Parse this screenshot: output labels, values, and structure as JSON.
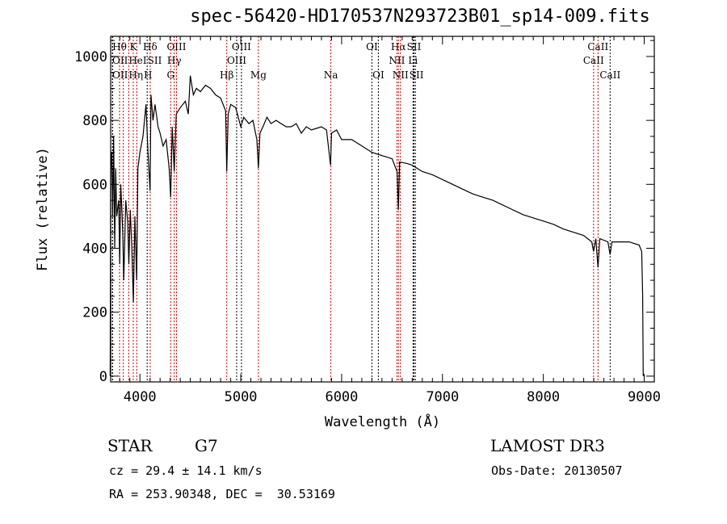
{
  "chart_data": {
    "type": "line",
    "title": "spec-56420-HD170537N293723B01_sp14-009.fits",
    "xlabel": "Wavelength (Å)",
    "ylabel": "Flux (relative)",
    "xlim": [
      3710,
      9100
    ],
    "ylim": [
      -18,
      1063
    ],
    "xticks": [
      4000,
      5000,
      6000,
      7000,
      8000,
      9000
    ],
    "xtick_labels": [
      "4000",
      "5000",
      "6000",
      "7000",
      "8000",
      "9000"
    ],
    "yticks": [
      0,
      200,
      400,
      600,
      800,
      1000
    ],
    "ytick_labels": [
      "0",
      "200",
      "400",
      "600",
      "800",
      "1000"
    ],
    "grid": false,
    "series": [
      {
        "name": "spectrum",
        "color": "#000000",
        "x": [
          3705,
          3710,
          3720,
          3730,
          3740,
          3750,
          3760,
          3770,
          3790,
          3800,
          3810,
          3830,
          3840,
          3860,
          3880,
          3890,
          3905,
          3920,
          3935,
          3950,
          3968,
          3980,
          4000,
          4030,
          4060,
          4080,
          4101,
          4110,
          4130,
          4150,
          4180,
          4200,
          4230,
          4260,
          4290,
          4305,
          4320,
          4340,
          4360,
          4400,
          4450,
          4480,
          4500,
          4530,
          4560,
          4600,
          4650,
          4700,
          4750,
          4800,
          4850,
          4861,
          4875,
          4900,
          4950,
          5000,
          5030,
          5080,
          5120,
          5160,
          5175,
          5190,
          5220,
          5260,
          5300,
          5350,
          5400,
          5450,
          5500,
          5550,
          5600,
          5650,
          5700,
          5750,
          5800,
          5850,
          5890,
          5900,
          5950,
          6000,
          6100,
          6200,
          6300,
          6400,
          6500,
          6550,
          6563,
          6575,
          6650,
          6700,
          6800,
          6900,
          7000,
          7100,
          7200,
          7300,
          7400,
          7500,
          7600,
          7700,
          7800,
          7900,
          8000,
          8100,
          8200,
          8300,
          8400,
          8480,
          8498,
          8520,
          8542,
          8560,
          8640,
          8662,
          8680,
          8750,
          8850,
          8950,
          8975,
          8985,
          8990
        ],
        "y": [
          0,
          650,
          700,
          500,
          750,
          400,
          650,
          500,
          550,
          350,
          600,
          450,
          300,
          550,
          480,
          350,
          520,
          400,
          230,
          500,
          300,
          650,
          700,
          750,
          850,
          700,
          580,
          880,
          800,
          850,
          780,
          760,
          720,
          740,
          650,
          560,
          780,
          640,
          820,
          840,
          860,
          820,
          940,
          880,
          900,
          890,
          910,
          900,
          880,
          870,
          830,
          640,
          820,
          850,
          840,
          780,
          810,
          790,
          800,
          740,
          650,
          760,
          780,
          810,
          790,
          800,
          790,
          780,
          780,
          790,
          760,
          780,
          770,
          775,
          780,
          770,
          660,
          760,
          770,
          740,
          740,
          720,
          700,
          690,
          680,
          640,
          520,
          670,
          665,
          660,
          640,
          630,
          615,
          600,
          585,
          570,
          560,
          550,
          535,
          520,
          505,
          495,
          485,
          475,
          460,
          450,
          440,
          420,
          390,
          430,
          340,
          430,
          420,
          380,
          420,
          420,
          420,
          410,
          390,
          250,
          0
        ]
      }
    ],
    "line_markers": [
      {
        "label": "Hθ",
        "wavelength": 3798,
        "row": 0,
        "color": "#cc0000"
      },
      {
        "label": "K",
        "wavelength": 3934,
        "row": 0,
        "color": "#cc0000"
      },
      {
        "label": "Hδ",
        "wavelength": 4102,
        "row": 0,
        "color": "#cc0000"
      },
      {
        "label": "OIII",
        "wavelength": 4363,
        "row": 0,
        "color": "#cc0000"
      },
      {
        "label": "OIII",
        "wavelength": 5007,
        "row": 0,
        "color": "#000000"
      },
      {
        "label": "OI",
        "wavelength": 6300,
        "row": 0,
        "color": "#000000"
      },
      {
        "label": "Hα",
        "wavelength": 6563,
        "row": 0,
        "color": "#cc0000"
      },
      {
        "label": "SII",
        "wavelength": 6717,
        "row": 0,
        "color": "#000000"
      },
      {
        "label": "CaII",
        "wavelength": 8542,
        "row": 0,
        "color": "#cc0000"
      },
      {
        "label": "OII",
        "wavelength": 3727,
        "row": 1,
        "color": "#000000"
      },
      {
        "label": "HeI",
        "wavelength": 3889,
        "row": 1,
        "color": "#cc0000"
      },
      {
        "label": "SII",
        "wavelength": 4072,
        "row": 1,
        "color": "#000000"
      },
      {
        "label": "Hγ",
        "wavelength": 4340,
        "row": 1,
        "color": "#cc0000"
      },
      {
        "label": "OIII",
        "wavelength": 4959,
        "row": 1,
        "color": "#000000"
      },
      {
        "label": "NII",
        "wavelength": 6548,
        "row": 1,
        "color": "#cc0000"
      },
      {
        "label": "Li",
        "wavelength": 6708,
        "row": 1,
        "color": "#000000"
      },
      {
        "label": "CaII",
        "wavelength": 8498,
        "row": 1,
        "color": "#cc0000"
      },
      {
        "label": "OII",
        "wavelength": 3730,
        "row": 2,
        "color": "#000000"
      },
      {
        "label": "Hη",
        "wavelength": 3835,
        "row": 2,
        "color": "#cc0000"
      },
      {
        "label": "H",
        "wavelength": 3969,
        "row": 2,
        "color": "#cc0000"
      },
      {
        "label": "G",
        "wavelength": 4305,
        "row": 2,
        "color": "#cc0000"
      },
      {
        "label": "Hβ",
        "wavelength": 4861,
        "row": 2,
        "color": "#cc0000"
      },
      {
        "label": "Mg",
        "wavelength": 5175,
        "row": 2,
        "color": "#cc0000"
      },
      {
        "label": "Na",
        "wavelength": 5893,
        "row": 2,
        "color": "#cc0000"
      },
      {
        "label": "OI",
        "wavelength": 6364,
        "row": 2,
        "color": "#000000"
      },
      {
        "label": "NII",
        "wavelength": 6583,
        "row": 2,
        "color": "#cc0000"
      },
      {
        "label": "SII",
        "wavelength": 6731,
        "row": 2,
        "color": "#000000"
      },
      {
        "label": "CaII",
        "wavelength": 8662,
        "row": 2,
        "color": "#000000"
      }
    ]
  },
  "info": {
    "class": "STAR",
    "subclass": "G7",
    "survey": "LAMOST DR3",
    "cz": "cz = 29.4 ± 14.1 km/s",
    "obs_date": "Obs-Date: 20130507",
    "coords": "RA = 253.90348, DEC =  30.53169"
  }
}
